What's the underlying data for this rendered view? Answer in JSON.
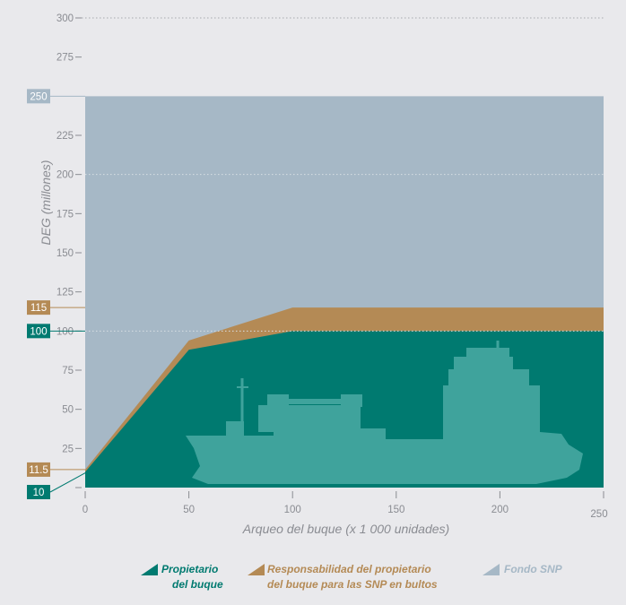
{
  "chart_data": {
    "type": "area",
    "xlabel": "Arqueo del buque (x 1 000 unidades)",
    "ylabel": "DEG (millones)",
    "xlim": [
      0,
      250
    ],
    "ylim": [
      0,
      300
    ],
    "x_ticks": [
      0,
      50,
      100,
      150,
      200,
      250
    ],
    "y_ticks": [
      25,
      50,
      75,
      100,
      125,
      150,
      175,
      200,
      225,
      250,
      275,
      300
    ],
    "dotted_gridlines_y": [
      100,
      200,
      300
    ],
    "legend_position": "bottom",
    "series": [
      {
        "name_lines": [
          "Propietario",
          "del buque"
        ],
        "color": "#007a70",
        "x": [
          0,
          50,
          100,
          250
        ],
        "y": [
          10,
          88,
          100,
          100
        ]
      },
      {
        "name_lines": [
          "Responsabilidad del propietario",
          "del buque para las SNP en bultos"
        ],
        "color": "#b48a55",
        "x": [
          0,
          50,
          100,
          250
        ],
        "y": [
          11.5,
          94,
          115,
          115
        ]
      },
      {
        "name_lines": [
          "Fondo SNP"
        ],
        "color": "#a6b8c6",
        "x": [
          0,
          250
        ],
        "y": [
          250,
          250
        ]
      }
    ],
    "callouts": [
      {
        "label": "250",
        "value": 250,
        "color": "#a6b8c6"
      },
      {
        "label": "115",
        "value": 115,
        "color": "#b48a55"
      },
      {
        "label": "100",
        "value": 100,
        "color": "#007a70"
      },
      {
        "label": "11.5",
        "value": 11.5,
        "color": "#b48a55"
      },
      {
        "label": "10",
        "value": 10,
        "color": "#007a70"
      }
    ],
    "ship_color": "#3fa39c"
  }
}
